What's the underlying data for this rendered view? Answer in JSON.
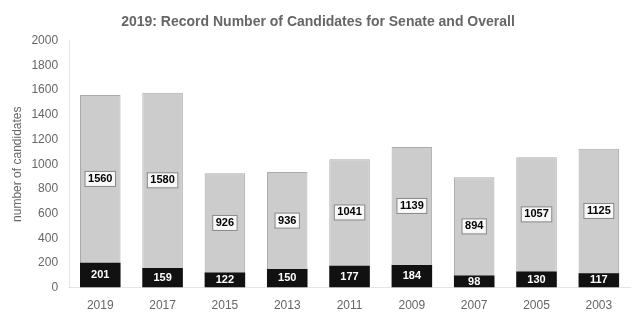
{
  "chart_data": {
    "type": "bar",
    "title": "2019: Record Number of Candidates for Senate and Overall",
    "ylabel": "number of candidates",
    "categories": [
      "2019",
      "2017",
      "2015",
      "2013",
      "2011",
      "2009",
      "2007",
      "2005",
      "2003"
    ],
    "series": [
      {
        "color": "#111111",
        "values": [
          201,
          159,
          122,
          150,
          177,
          184,
          98,
          130,
          117
        ]
      },
      {
        "color": "#cccccc",
        "values": [
          1560,
          1580,
          926,
          936,
          1041,
          1139,
          894,
          1057,
          1125
        ]
      }
    ],
    "ylim": [
      0,
      2000
    ],
    "yticks": [
      0,
      200,
      400,
      600,
      800,
      1000,
      1200,
      1400,
      1600,
      1800,
      2000
    ],
    "grid": false,
    "data_labels": true
  }
}
